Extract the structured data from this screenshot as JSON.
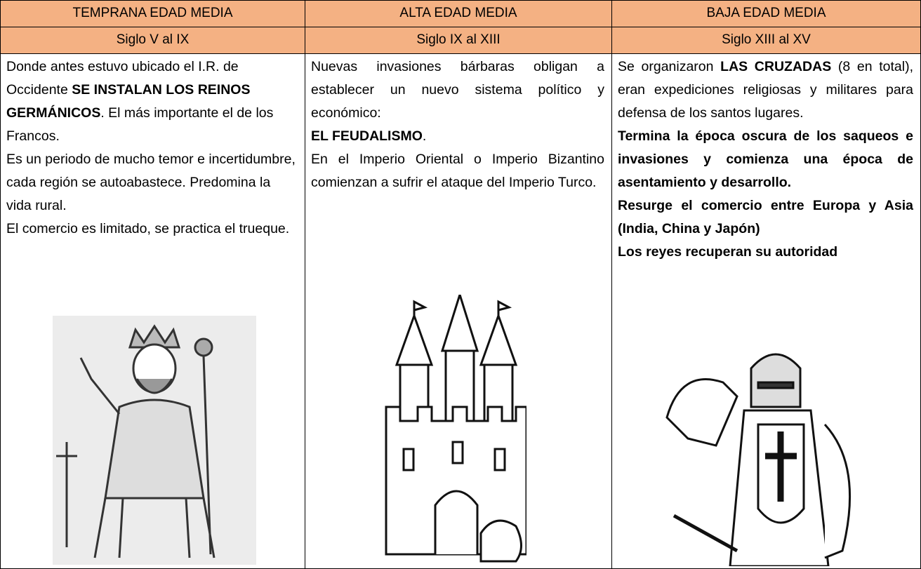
{
  "columns": [
    {
      "title": "TEMPRANA  EDAD MEDIA",
      "period": "Siglo V al IX",
      "align": "left",
      "paragraphs": [
        [
          {
            "text": "Donde antes estuvo ubicado el I.R. de Occidente "
          },
          {
            "text": "SE INSTALAN LOS REINOS GERMÁNICOS",
            "bold": true
          },
          {
            "text": ". El más importante el de los Francos."
          }
        ],
        [
          {
            "text": "Es un periodo de mucho temor e incertidumbre, cada región se autoabastece. Predomina la vida rural."
          }
        ],
        [
          {
            "text": "El comercio es limitado, se practica el trueque."
          }
        ]
      ]
    },
    {
      "title": "ALTA EDAD MEDIA",
      "period": "Siglo IX al  XIII",
      "align": "justify",
      "paragraphs": [
        [
          {
            "text": "Nuevas invasiones bárbaras obligan a establecer un nuevo sistema político y económico:"
          }
        ],
        [
          {
            "text": "EL FEUDALISMO",
            "bold": true
          },
          {
            "text": "."
          }
        ],
        [
          {
            "text": "En el Imperio Oriental o Imperio Bizantino comienzan a sufrir el ataque del Imperio Turco."
          }
        ]
      ]
    },
    {
      "title": "BAJA EDAD MEDIA",
      "period": "Siglo XIII al XV",
      "align": "justify",
      "paragraphs": [
        [
          {
            "text": "Se organizaron "
          },
          {
            "text": "LAS CRUZADAS",
            "bold": true
          },
          {
            "text": " (8 en total), eran expediciones religiosas y militares para defensa de los santos lugares."
          }
        ],
        [
          {
            "text": " Termina la época oscura de los saqueos e invasiones y comienza una época de asentamiento y desarrollo.",
            "bold": true
          }
        ],
        [
          {
            "text": "Resurge el comercio entre Europa y Asia (India, China y Japón)",
            "bold": true
          }
        ],
        [
          {
            "text": "Los reyes recuperan su autoridad",
            "bold": true
          }
        ]
      ]
    }
  ]
}
